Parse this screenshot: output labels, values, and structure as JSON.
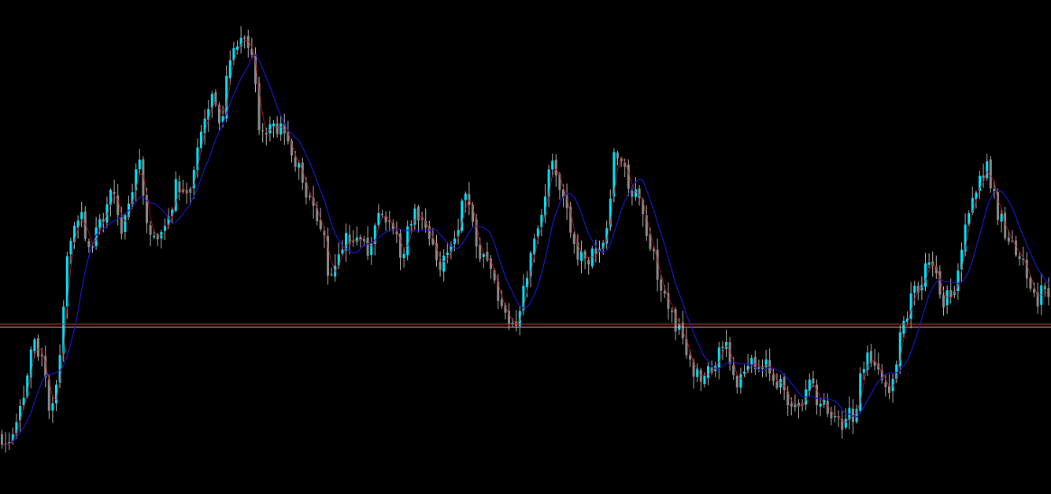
{
  "colors": {
    "background": "#000000",
    "bull_candle": "#00e5ff",
    "bear_candle": "#8c8c8c",
    "wick": "#b4b4b4",
    "moving_average": "#1a1acc",
    "signal_line": "#cc1a1a",
    "level_line_1": "#c0392b",
    "level_line_2": "#e8a090"
  },
  "chart_data": {
    "type": "line",
    "grid": false,
    "legend": "none",
    "ylim": [
      0,
      628
    ],
    "price_path_anchors": [
      [
        0,
        555
      ],
      [
        15,
        560
      ],
      [
        30,
        500
      ],
      [
        40,
        430
      ],
      [
        55,
        470
      ],
      [
        63,
        540
      ],
      [
        75,
        450
      ],
      [
        85,
        300
      ],
      [
        100,
        270
      ],
      [
        110,
        330
      ],
      [
        125,
        280
      ],
      [
        140,
        250
      ],
      [
        155,
        290
      ],
      [
        175,
        210
      ],
      [
        190,
        300
      ],
      [
        205,
        290
      ],
      [
        225,
        230
      ],
      [
        240,
        240
      ],
      [
        255,
        150
      ],
      [
        268,
        130
      ],
      [
        280,
        150
      ],
      [
        295,
        50
      ],
      [
        312,
        35
      ],
      [
        330,
        170
      ],
      [
        345,
        150
      ],
      [
        360,
        180
      ],
      [
        375,
        210
      ],
      [
        395,
        270
      ],
      [
        410,
        290
      ],
      [
        418,
        365
      ],
      [
        432,
        310
      ],
      [
        450,
        300
      ],
      [
        465,
        320
      ],
      [
        485,
        260
      ],
      [
        500,
        300
      ],
      [
        510,
        320
      ],
      [
        525,
        270
      ],
      [
        540,
        300
      ],
      [
        555,
        340
      ],
      [
        570,
        320
      ],
      [
        590,
        250
      ],
      [
        605,
        320
      ],
      [
        620,
        330
      ],
      [
        635,
        390
      ],
      [
        652,
        420
      ],
      [
        660,
        380
      ],
      [
        675,
        320
      ],
      [
        690,
        260
      ],
      [
        700,
        190
      ],
      [
        710,
        230
      ],
      [
        725,
        300
      ],
      [
        740,
        340
      ],
      [
        755,
        310
      ],
      [
        770,
        300
      ],
      [
        778,
        200
      ],
      [
        790,
        210
      ],
      [
        805,
        250
      ],
      [
        820,
        290
      ],
      [
        832,
        340
      ],
      [
        845,
        380
      ],
      [
        860,
        420
      ],
      [
        875,
        470
      ],
      [
        890,
        480
      ],
      [
        905,
        460
      ],
      [
        920,
        440
      ],
      [
        935,
        490
      ],
      [
        950,
        470
      ],
      [
        965,
        460
      ],
      [
        980,
        470
      ],
      [
        995,
        500
      ],
      [
        1010,
        530
      ],
      [
        1025,
        480
      ],
      [
        1040,
        510
      ],
      [
        1055,
        530
      ],
      [
        1070,
        535
      ],
      [
        1085,
        520
      ],
      [
        1100,
        440
      ],
      [
        1112,
        470
      ],
      [
        1128,
        510
      ],
      [
        1140,
        440
      ],
      [
        1155,
        380
      ],
      [
        1170,
        350
      ],
      [
        1185,
        330
      ],
      [
        1195,
        380
      ],
      [
        1210,
        370
      ],
      [
        1225,
        290
      ],
      [
        1240,
        240
      ],
      [
        1252,
        215
      ],
      [
        1262,
        260
      ],
      [
        1280,
        300
      ],
      [
        1295,
        320
      ],
      [
        1310,
        380
      ],
      [
        1335,
        370
      ]
    ],
    "horizontal_levels": [
      412,
      416
    ]
  }
}
